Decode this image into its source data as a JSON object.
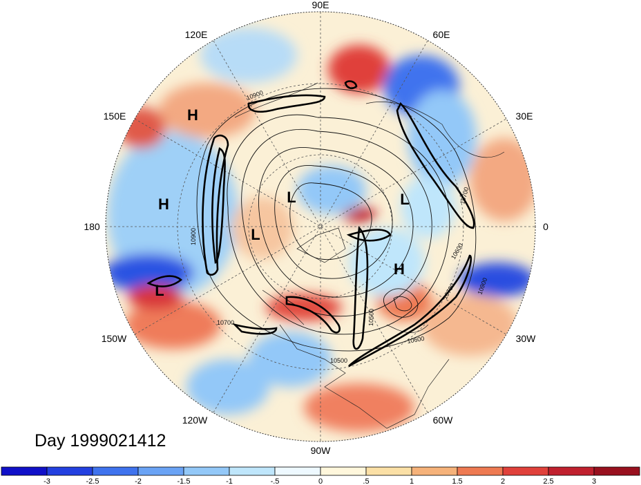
{
  "title": "Day 1999021412",
  "longitude_labels": [
    "90E",
    "60E",
    "30E",
    "0",
    "30W",
    "60W",
    "90W",
    "120W",
    "150W",
    "180",
    "150E",
    "120E"
  ],
  "pressure_centers": [
    "H",
    "H",
    "L",
    "L",
    "L",
    "L",
    "H"
  ],
  "contour_labels": [
    "10900",
    "10700",
    "10600",
    "10500",
    "10900",
    "10700",
    "10900",
    "10600",
    "10500",
    "10700"
  ],
  "colorbar": {
    "ticks": [
      "-3",
      "-2.5",
      "-2",
      "-1.5",
      "-1",
      "-.5",
      "0",
      ".5",
      "1",
      "1.5",
      "2",
      "2.5",
      "3"
    ],
    "colors": [
      "#1010c8",
      "#2340e0",
      "#3f73ee",
      "#6aa3f5",
      "#93c8f8",
      "#bfe6fb",
      "#eef9ff",
      "#fff7dc",
      "#fbe0a6",
      "#f6b27a",
      "#ee7a52",
      "#e0413b",
      "#c0202e",
      "#98101e"
    ]
  }
}
